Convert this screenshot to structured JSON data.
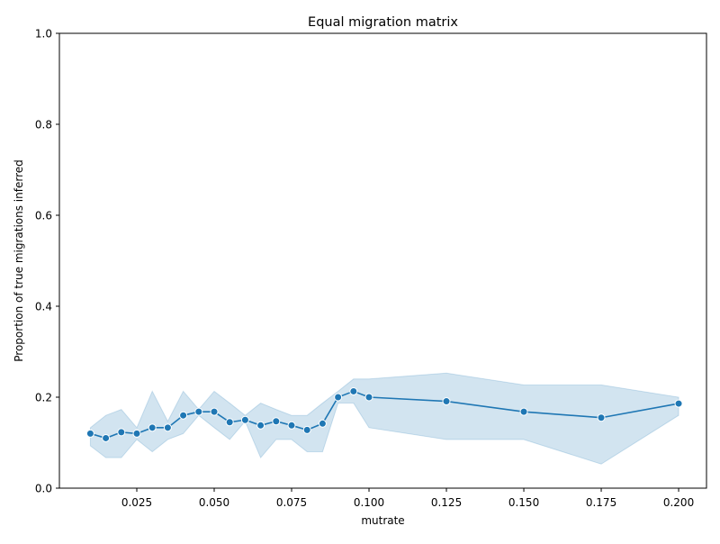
{
  "chart_data": {
    "type": "line",
    "title": "Equal migration matrix",
    "xlabel": "mutrate",
    "ylabel": "Proportion of true migrations inferred",
    "xlim": [
      0.0,
      0.209
    ],
    "ylim": [
      0.0,
      1.0
    ],
    "x_ticks": [
      0.025,
      0.05,
      0.075,
      0.1,
      0.125,
      0.15,
      0.175,
      0.2
    ],
    "x_tick_labels": [
      "0.025",
      "0.050",
      "0.075",
      "0.100",
      "0.125",
      "0.150",
      "0.175",
      "0.200"
    ],
    "y_ticks": [
      0.0,
      0.2,
      0.4,
      0.6,
      0.8,
      1.0
    ],
    "y_tick_labels": [
      "0.0",
      "0.2",
      "0.4",
      "0.6",
      "0.8",
      "1.0"
    ],
    "grid": false,
    "legend": "none",
    "series": [
      {
        "x": [
          0.01,
          0.015,
          0.02,
          0.025,
          0.03,
          0.035,
          0.04,
          0.045,
          0.05,
          0.055,
          0.06,
          0.065,
          0.07,
          0.075,
          0.08,
          0.085,
          0.09,
          0.095,
          0.1,
          0.125,
          0.15,
          0.175,
          0.2
        ],
        "y": [
          0.12,
          0.11,
          0.123,
          0.12,
          0.133,
          0.133,
          0.16,
          0.168,
          0.168,
          0.145,
          0.15,
          0.138,
          0.147,
          0.138,
          0.128,
          0.142,
          0.2,
          0.213,
          0.2,
          0.191,
          0.168,
          0.155,
          0.186
        ],
        "ci_lower": [
          0.093,
          0.067,
          0.067,
          0.107,
          0.08,
          0.107,
          0.12,
          0.16,
          0.133,
          0.107,
          0.147,
          0.067,
          0.107,
          0.107,
          0.08,
          0.08,
          0.187,
          0.187,
          0.133,
          0.107,
          0.107,
          0.053,
          0.16
        ],
        "ci_upper": [
          0.133,
          0.16,
          0.173,
          0.133,
          0.213,
          0.147,
          0.213,
          0.173,
          0.213,
          0.187,
          0.16,
          0.187,
          0.173,
          0.16,
          0.16,
          0.187,
          0.213,
          0.24,
          0.24,
          0.253,
          0.227,
          0.227,
          0.2
        ]
      }
    ],
    "colors": {
      "line": "#1f77b4",
      "marker_fill": "#1f77b4",
      "marker_edge": "#ffffff",
      "band": "#1f77b4"
    }
  }
}
